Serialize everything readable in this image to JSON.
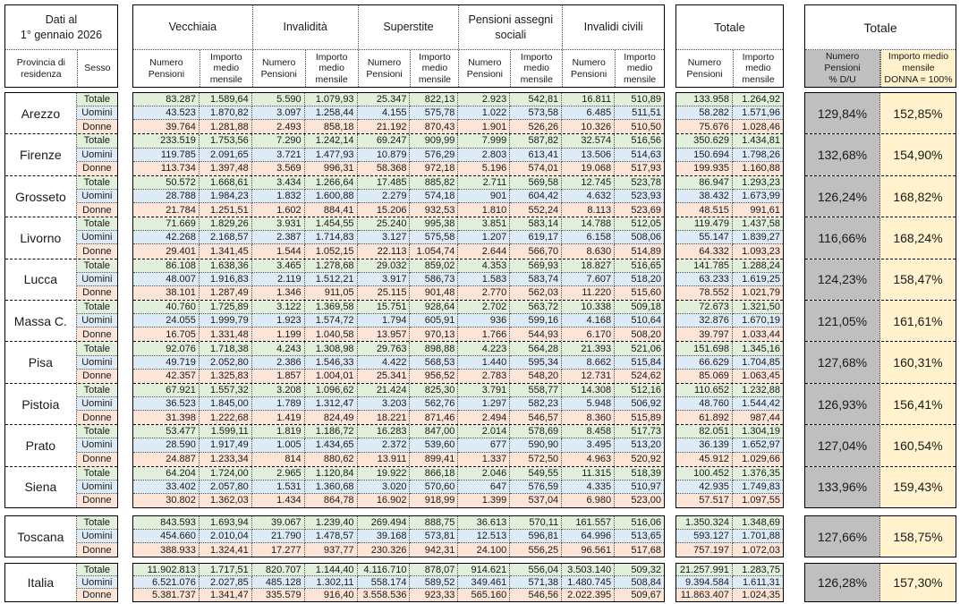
{
  "meta": {
    "date_line1": "Dati al",
    "date_line2": "1° gennaio 2026"
  },
  "headers": {
    "province_label": "Provincia di residenza",
    "sex_label": "Sesso",
    "groups": [
      "Vecchiaia",
      "Invalidità",
      "Superstite",
      "Pensioni assegni sociali",
      "Invalidi civili",
      "Totale"
    ],
    "sub_numero": "Numero Pensioni",
    "sub_importo": "Importo medio mensile",
    "right_title": "Totale",
    "right_col1": "Numero\nPensioni\n% D/U",
    "right_col2": "Importo medio\nmensile\nDONNA = 100%"
  },
  "sex_labels": [
    "Totale",
    "Uomini",
    "Donne"
  ],
  "colors": {
    "row_totale": "#E2EFDA",
    "row_uomini": "#DDEBF7",
    "row_donne": "#FCE4D6",
    "pct_numero_bg": "#BFBFBF",
    "pct_importo_bg": "#FFF2CC",
    "border": "#000000"
  },
  "provinces": [
    {
      "name": "Arezzo",
      "pct": [
        "129,84%",
        "152,85%"
      ],
      "rows": [
        [
          "83.287",
          "1.589,64",
          "5.590",
          "1.079,93",
          "25.347",
          "822,13",
          "2.923",
          "542,81",
          "16.811",
          "510,89",
          "133.958",
          "1.264,92"
        ],
        [
          "43.523",
          "1.870,82",
          "3.097",
          "1.258,44",
          "4.155",
          "575,78",
          "1.022",
          "573,58",
          "6.485",
          "511,51",
          "58.282",
          "1.571,96"
        ],
        [
          "39.764",
          "1.281,88",
          "2.493",
          "858,18",
          "21.192",
          "870,43",
          "1.901",
          "526,26",
          "10.326",
          "510,50",
          "75.676",
          "1.028,46"
        ]
      ]
    },
    {
      "name": "Firenze",
      "pct": [
        "132,68%",
        "154,90%"
      ],
      "rows": [
        [
          "233.519",
          "1.753,56",
          "7.290",
          "1.242,14",
          "69.247",
          "909,99",
          "7.999",
          "587,82",
          "32.574",
          "516,56",
          "350.629",
          "1.434,81"
        ],
        [
          "119.785",
          "2.091,65",
          "3.721",
          "1.477,93",
          "10.879",
          "576,29",
          "2.803",
          "613,41",
          "13.506",
          "514,63",
          "150.694",
          "1.798,26"
        ],
        [
          "113.734",
          "1.397,48",
          "3.569",
          "996,31",
          "58.368",
          "972,18",
          "5.196",
          "574,01",
          "19.068",
          "517,93",
          "199.935",
          "1.160,88"
        ]
      ]
    },
    {
      "name": "Grosseto",
      "pct": [
        "126,24%",
        "168,82%"
      ],
      "rows": [
        [
          "50.572",
          "1.668,61",
          "3.434",
          "1.266,64",
          "17.485",
          "885,82",
          "2.711",
          "569,58",
          "12.745",
          "523,78",
          "86.947",
          "1.293,23"
        ],
        [
          "28.788",
          "1.984,23",
          "1.832",
          "1.600,88",
          "2.279",
          "574,18",
          "901",
          "604,42",
          "4.632",
          "523,93",
          "38.432",
          "1.673,99"
        ],
        [
          "21.784",
          "1.251,51",
          "1.602",
          "884,41",
          "15.206",
          "932,53",
          "1.810",
          "552,24",
          "8.113",
          "523,69",
          "48.515",
          "991,61"
        ]
      ]
    },
    {
      "name": "Livorno",
      "pct": [
        "116,66%",
        "168,24%"
      ],
      "rows": [
        [
          "71.669",
          "1.829,26",
          "3.931",
          "1.454,55",
          "25.240",
          "995,38",
          "3.851",
          "583,14",
          "14.788",
          "512,05",
          "119.479",
          "1.437,58"
        ],
        [
          "42.268",
          "2.168,57",
          "2.387",
          "1.714,83",
          "3.127",
          "575,58",
          "1.207",
          "619,17",
          "6.158",
          "508,06",
          "55.147",
          "1.839,27"
        ],
        [
          "29.401",
          "1.341,45",
          "1.544",
          "1.052,15",
          "22.113",
          "1.054,74",
          "2.644",
          "566,70",
          "8.630",
          "514,89",
          "64.332",
          "1.093,23"
        ]
      ]
    },
    {
      "name": "Lucca",
      "pct": [
        "124,23%",
        "158,47%"
      ],
      "rows": [
        [
          "86.108",
          "1.638,36",
          "3.465",
          "1.278,68",
          "29.032",
          "859,02",
          "4.353",
          "569,93",
          "18.827",
          "516,65",
          "141.785",
          "1.288,24"
        ],
        [
          "48.007",
          "1.916,83",
          "2.119",
          "1.512,21",
          "3.917",
          "586,73",
          "1.583",
          "583,74",
          "7.607",
          "518,20",
          "63.233",
          "1.619,25"
        ],
        [
          "38.101",
          "1.287,49",
          "1.346",
          "911,05",
          "25.115",
          "901,48",
          "2.770",
          "562,03",
          "11.220",
          "515,60",
          "78.552",
          "1.021,79"
        ]
      ]
    },
    {
      "name": "Massa C.",
      "pct": [
        "121,05%",
        "161,61%"
      ],
      "rows": [
        [
          "40.760",
          "1.725,89",
          "3.122",
          "1.369,58",
          "15.751",
          "928,64",
          "2.702",
          "563,72",
          "10.338",
          "509,18",
          "72.673",
          "1.321,50"
        ],
        [
          "24.055",
          "1.999,79",
          "1.923",
          "1.574,72",
          "1.794",
          "605,91",
          "936",
          "599,16",
          "4.168",
          "510,64",
          "32.876",
          "1.670,19"
        ],
        [
          "16.705",
          "1.331,48",
          "1.199",
          "1.040,58",
          "13.957",
          "970,13",
          "1.766",
          "544,93",
          "6.170",
          "508,20",
          "39.797",
          "1.033,44"
        ]
      ]
    },
    {
      "name": "Pisa",
      "pct": [
        "127,68%",
        "160,31%"
      ],
      "rows": [
        [
          "92.076",
          "1.718,38",
          "4.243",
          "1.308,98",
          "29.763",
          "898,88",
          "4.223",
          "564,28",
          "21.393",
          "521,06",
          "151.698",
          "1.345,16"
        ],
        [
          "49.719",
          "2.052,80",
          "2.386",
          "1.546,33",
          "4.422",
          "568,53",
          "1.440",
          "595,34",
          "8.662",
          "515,84",
          "66.629",
          "1.704,85"
        ],
        [
          "42.357",
          "1.325,83",
          "1.857",
          "1.004,01",
          "25.341",
          "956,52",
          "2.783",
          "548,20",
          "12.731",
          "524,62",
          "85.069",
          "1.063,45"
        ]
      ]
    },
    {
      "name": "Pistoia",
      "pct": [
        "126,93%",
        "156,41%"
      ],
      "rows": [
        [
          "67.921",
          "1.557,32",
          "3.208",
          "1.096,62",
          "21.424",
          "825,30",
          "3.791",
          "558,77",
          "14.308",
          "512,16",
          "110.652",
          "1.232,88"
        ],
        [
          "36.523",
          "1.845,00",
          "1.789",
          "1.312,47",
          "3.203",
          "562,76",
          "1.297",
          "582,23",
          "5.948",
          "506,92",
          "48.760",
          "1.544,42"
        ],
        [
          "31.398",
          "1.222,68",
          "1.419",
          "824,49",
          "18.221",
          "871,46",
          "2.494",
          "546,57",
          "8.360",
          "515,89",
          "61.892",
          "987,44"
        ]
      ]
    },
    {
      "name": "Prato",
      "pct": [
        "127,04%",
        "160,54%"
      ],
      "rows": [
        [
          "53.477",
          "1.599,11",
          "1.819",
          "1.186,72",
          "16.283",
          "847,00",
          "2.014",
          "578,69",
          "8.458",
          "517,73",
          "82.051",
          "1.304,19"
        ],
        [
          "28.590",
          "1.917,49",
          "1.005",
          "1.434,65",
          "2.372",
          "539,60",
          "677",
          "590,90",
          "3.495",
          "513,20",
          "36.139",
          "1.652,97"
        ],
        [
          "24.887",
          "1.233,34",
          "814",
          "880,62",
          "13.911",
          "899,41",
          "1.337",
          "572,50",
          "4.963",
          "520,92",
          "45.912",
          "1.029,66"
        ]
      ]
    },
    {
      "name": "Siena",
      "pct": [
        "133,96%",
        "159,43%"
      ],
      "rows": [
        [
          "64.204",
          "1.724,00",
          "2.965",
          "1.120,84",
          "19.922",
          "866,18",
          "2.046",
          "549,55",
          "11.315",
          "518,39",
          "100.452",
          "1.376,35"
        ],
        [
          "33.402",
          "2.057,80",
          "1.531",
          "1.360,68",
          "3.020",
          "570,60",
          "647",
          "576,59",
          "4.335",
          "510,97",
          "42.935",
          "1.749,83"
        ],
        [
          "30.802",
          "1.362,03",
          "1.434",
          "864,78",
          "16.902",
          "918,99",
          "1.399",
          "537,04",
          "6.980",
          "523,00",
          "57.517",
          "1.097,55"
        ]
      ]
    }
  ],
  "toscana": {
    "name": "Toscana",
    "pct": [
      "127,66%",
      "158,75%"
    ],
    "rows": [
      [
        "843.593",
        "1.693,94",
        "39.067",
        "1.239,40",
        "269.494",
        "888,75",
        "36.613",
        "570,11",
        "161.557",
        "516,06",
        "1.350.324",
        "1.348,69"
      ],
      [
        "454.660",
        "2.010,04",
        "21.790",
        "1.478,57",
        "39.168",
        "573,81",
        "12.513",
        "596,81",
        "64.996",
        "513,65",
        "593.127",
        "1.701,88"
      ],
      [
        "388.933",
        "1.324,41",
        "17.277",
        "937,77",
        "230.326",
        "942,31",
        "24.100",
        "556,25",
        "96.561",
        "517,68",
        "757.197",
        "1.072,03"
      ]
    ]
  },
  "italia": {
    "name": "Italia",
    "pct": [
      "126,28%",
      "157,30%"
    ],
    "rows": [
      [
        "11.902.813",
        "1.717,51",
        "820.707",
        "1.144,40",
        "4.116.710",
        "878,07",
        "914.621",
        "556,04",
        "3.503.140",
        "509,32",
        "21.257.991",
        "1.283,75"
      ],
      [
        "6.521.076",
        "2.027,85",
        "485.128",
        "1.302,11",
        "558.174",
        "589,52",
        "349.461",
        "571,38",
        "1.480.745",
        "508,84",
        "9.394.584",
        "1.611,31"
      ],
      [
        "5.381.737",
        "1.341,47",
        "335.579",
        "916,40",
        "3.558.536",
        "923,33",
        "565.160",
        "546,56",
        "2.022.395",
        "509,67",
        "11.863.407",
        "1.024,35"
      ]
    ]
  }
}
